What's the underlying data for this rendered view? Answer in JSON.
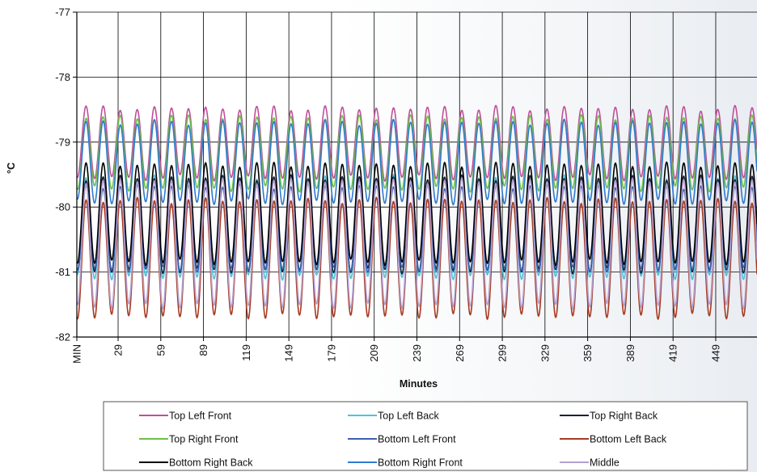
{
  "chart_data": {
    "type": "line",
    "title": "",
    "xlabel": "Minutes",
    "ylabel": "°C",
    "xlim": [
      0,
      478
    ],
    "ylim": [
      -82,
      -77
    ],
    "yticks": [
      -77,
      -78,
      -79,
      -80,
      -81,
      -82
    ],
    "xtick_labels": [
      "MIN",
      "29",
      "59",
      "89",
      "119",
      "149",
      "179",
      "209",
      "239",
      "269",
      "299",
      "329",
      "359",
      "389",
      "419",
      "449"
    ],
    "xtick_values": [
      0,
      29,
      59,
      89,
      119,
      149,
      179,
      209,
      239,
      269,
      299,
      329,
      359,
      389,
      419,
      449
    ],
    "grid": true,
    "legend_position": "bottom",
    "oscillation_period_minutes": 12,
    "series": [
      {
        "name": "Top Left Front",
        "color": "#c0509a",
        "max": -78.48,
        "min": -79.55
      },
      {
        "name": "Top Left Back",
        "color": "#4cc3d9",
        "max": -79.55,
        "min": -81.08
      },
      {
        "name": "Top Right Back",
        "color": "#1a2238",
        "max": -79.55,
        "min": -80.98
      },
      {
        "name": "Top Right Front",
        "color": "#6cbf48",
        "max": -78.62,
        "min": -79.72
      },
      {
        "name": "Bottom Left Front",
        "color": "#3f5fb0",
        "max": -79.68,
        "min": -80.96
      },
      {
        "name": "Bottom Left Back",
        "color": "#a83a22",
        "max": -79.9,
        "min": -81.68
      },
      {
        "name": "Bottom Right Back",
        "color": "#000000",
        "max": -79.35,
        "min": -80.85
      },
      {
        "name": "Bottom Right Front",
        "color": "#2f7ad0",
        "max": -78.7,
        "min": -79.92
      },
      {
        "name": "Middle",
        "color": "#b3a0d0",
        "max": -79.6,
        "min": -81.52
      }
    ]
  }
}
